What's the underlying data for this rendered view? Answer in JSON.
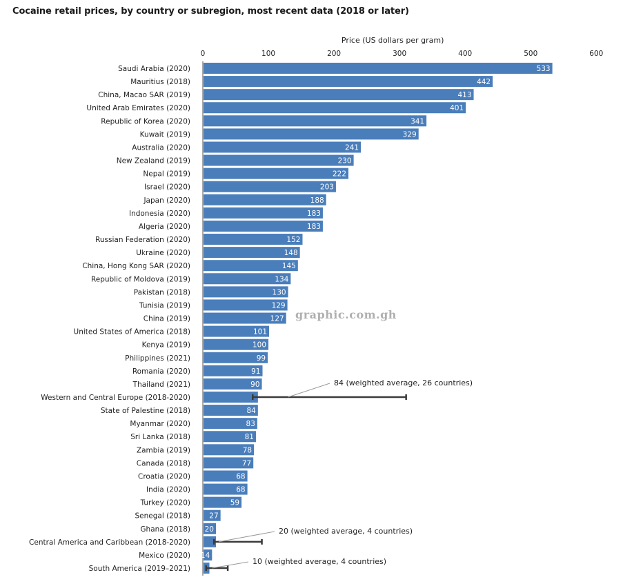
{
  "title": "Cocaine retail prices, by country or subregion, most recent data (2018 or later)",
  "watermark": "graphic.com.gh",
  "colors": {
    "bar": "#4a7ebb",
    "errorbar": "#3a3a3a",
    "leader": "#9a9a9a",
    "axis": "#555555"
  },
  "chart_data": {
    "type": "bar",
    "orientation": "horizontal",
    "xlabel": "Price (US dollars per gram)",
    "xlim": [
      0,
      600
    ],
    "xticks": [
      0,
      100,
      200,
      300,
      400,
      500,
      600
    ],
    "xaxis_position": "top",
    "grid": false,
    "categories": [
      "Saudi Arabia (2020)",
      "Mauritius (2018)",
      "China, Macao SAR (2019)",
      "United Arab Emirates (2020)",
      "Republic of Korea (2020)",
      "Kuwait (2019)",
      "Australia (2020)",
      "New Zealand (2019)",
      "Nepal (2019)",
      "Israel (2020)",
      "Japan (2020)",
      "Indonesia (2020)",
      "Algeria (2020)",
      "Russian Federation (2020)",
      "Ukraine (2020)",
      "China, Hong Kong SAR (2020)",
      "Republic of Moldova (2019)",
      "Pakistan (2018)",
      "Tunisia (2019)",
      "China (2019)",
      "United States of America (2018)",
      "Kenya (2019)",
      "Philippines (2021)",
      "Romania (2020)",
      "Thailand (2021)",
      "Western and Central Europe (2018-2020)",
      "State of Palestine (2018)",
      "Myanmar (2020)",
      "Sri Lanka (2018)",
      "Zambia (2019)",
      "Canada (2018)",
      "Croatia (2020)",
      "India (2020)",
      "Turkey (2020)",
      "Senegal (2018)",
      "Ghana (2018)",
      "Central America and Caribbean (2018-2020)",
      "Mexico (2020)",
      "South America (2019–2021)"
    ],
    "values": [
      533,
      442,
      413,
      401,
      341,
      329,
      241,
      230,
      222,
      203,
      188,
      183,
      183,
      152,
      148,
      145,
      134,
      130,
      129,
      127,
      101,
      100,
      99,
      91,
      90,
      84,
      84,
      83,
      81,
      78,
      77,
      68,
      68,
      59,
      27,
      20,
      20,
      14,
      10
    ],
    "data_labels": [
      "533",
      "442",
      "413",
      "401",
      "341",
      "329",
      "241",
      "230",
      "222",
      "203",
      "188",
      "183",
      "183",
      "152",
      "148",
      "145",
      "134",
      "130",
      "129",
      "127",
      "101",
      "100",
      "99",
      "91",
      "90",
      "",
      "84",
      "83",
      "81",
      "78",
      "77",
      "68",
      "68",
      "59",
      "27",
      "20",
      "",
      "14",
      ""
    ],
    "aggregates": [
      {
        "category": "Western and Central Europe (2018-2020)",
        "value": 84,
        "range": [
          76,
          310
        ],
        "annotation": "84 (weighted average, 26 countries)"
      },
      {
        "category": "Central America and Caribbean (2018-2020)",
        "value": 20,
        "range": [
          17,
          90
        ],
        "annotation": "20 (weighted average, 4 countries)"
      },
      {
        "category": "South America (2019–2021)",
        "value": 10,
        "range": [
          5,
          38
        ],
        "annotation": "10 (weighted average, 4 countries)"
      }
    ]
  }
}
